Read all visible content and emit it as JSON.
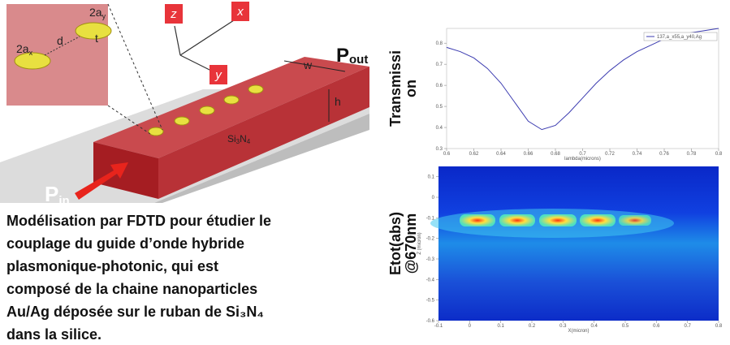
{
  "schematic": {
    "axis_labels": [
      "z",
      "x",
      "y"
    ],
    "dim_2ay": {
      "main": "2a",
      "sub": "y"
    },
    "dim_2ax": {
      "main": "2a",
      "sub": "x"
    },
    "dim_d": "d",
    "dim_t": "t",
    "dim_w": "w",
    "dim_h": "h",
    "material": {
      "parts": [
        "Si",
        "3",
        "N",
        "4"
      ]
    },
    "p_out": {
      "main": "P",
      "sub": "out"
    },
    "p_in": {
      "main": "P",
      "sub": "in"
    }
  },
  "caption": [
    "Modélisation par FDTD pour étudier le",
    "couplage du guide d’onde hybride",
    "plasmonique-photonic, qui est",
    "composé de la chaine nanoparticles",
    "Au/Ag déposée sur le ruban de Si₃N₄",
    "dans la silice."
  ],
  "chart_data": [
    {
      "type": "line",
      "y_title": [
        "Transmissi",
        "on"
      ],
      "x_title": "lambda(microns)",
      "x": [
        0.6,
        0.61,
        0.62,
        0.63,
        0.64,
        0.65,
        0.66,
        0.67,
        0.68,
        0.69,
        0.7,
        0.71,
        0.72,
        0.73,
        0.74,
        0.75,
        0.76,
        0.77,
        0.78,
        0.79,
        0.8
      ],
      "series": [
        {
          "name": "137,a_x55,a_y40,Ag",
          "color": "#3b3bb0",
          "values": [
            0.78,
            0.76,
            0.73,
            0.68,
            0.61,
            0.52,
            0.43,
            0.39,
            0.41,
            0.47,
            0.54,
            0.61,
            0.67,
            0.72,
            0.76,
            0.79,
            0.82,
            0.84,
            0.85,
            0.86,
            0.87
          ]
        }
      ],
      "xlim": [
        0.6,
        0.8
      ],
      "xticks": [
        0.6,
        0.62,
        0.64,
        0.66,
        0.68,
        0.7,
        0.72,
        0.74,
        0.76,
        0.78,
        0.8
      ],
      "ylim": [
        0.3,
        0.87
      ],
      "yticks": [
        0.3,
        0.4,
        0.5,
        0.6,
        0.7,
        0.8
      ],
      "legend": "upper right"
    },
    {
      "type": "heatmap",
      "y_title": [
        "Etot(abs)",
        "@670nm"
      ],
      "x_title": "X(micron)",
      "y_axis_title": "Z (micron)",
      "xlim": [
        -0.1,
        0.8
      ],
      "xticks": [
        -0.1,
        0,
        0.1,
        0.2,
        0.3,
        0.4,
        0.5,
        0.6,
        0.7,
        0.8
      ],
      "ylim": [
        -0.6,
        0.15
      ],
      "yticks": [
        0.1,
        0,
        -0.1,
        -0.2,
        -0.3,
        -0.4,
        -0.5,
        -0.6
      ]
    }
  ]
}
